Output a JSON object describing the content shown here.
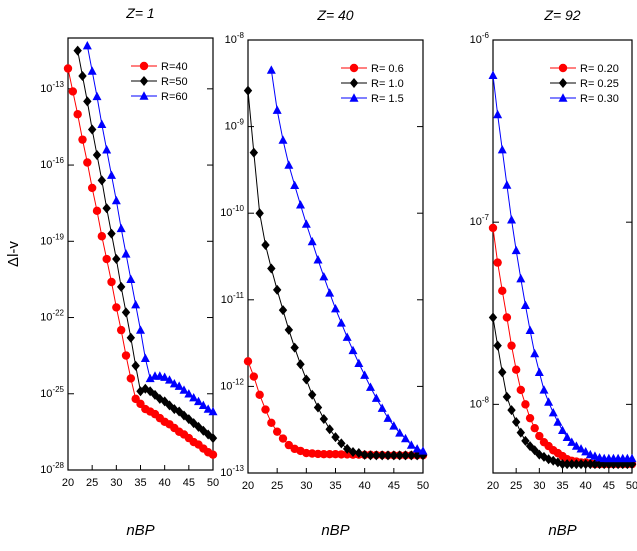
{
  "chart_data": [
    {
      "type": "line",
      "title": "Z= 1",
      "ylabel": "Δl-v",
      "xlabel": "nBP",
      "log_y": true,
      "x": [
        20,
        21,
        22,
        23,
        24,
        25,
        26,
        27,
        28,
        29,
        30,
        31,
        32,
        33,
        34,
        35,
        36,
        37,
        38,
        39,
        40,
        41,
        42,
        43,
        44,
        45,
        46,
        47,
        48,
        49,
        50
      ],
      "xlim": [
        20,
        50
      ],
      "xticks": [
        20,
        25,
        30,
        35,
        40,
        45,
        50
      ],
      "ylim": [
        1e-28,
        1e-11
      ],
      "yticks": [
        {
          "value": 1e-28,
          "label": "10-28"
        },
        {
          "value": 1e-25,
          "label": "10-25"
        },
        {
          "value": 1e-22,
          "label": "10-22"
        },
        {
          "value": 1e-19,
          "label": "10-19"
        },
        {
          "value": 1e-16,
          "label": "10-16"
        },
        {
          "value": 1e-13,
          "label": "10-13"
        }
      ],
      "series": [
        {
          "name": "R=40",
          "color": "#ff0000",
          "marker": "circle",
          "values": [
            6.3e-13,
            7.9e-14,
            1e-14,
            1e-15,
            1.26e-16,
            1.26e-17,
            1.58e-18,
            1.58e-19,
            2e-20,
            2.5e-21,
            2.5e-22,
            3.2e-23,
            3.2e-24,
            4e-25,
            6.3e-26,
            4e-26,
            2.5e-26,
            2e-26,
            1.58e-26,
            1.1e-26,
            7.9e-27,
            6.3e-27,
            4.5e-27,
            3.2e-27,
            2.5e-27,
            1.8e-27,
            1.26e-27,
            1e-27,
            7e-28,
            5e-28,
            4e-28
          ]
        },
        {
          "name": "R=50",
          "color": "#000000",
          "marker": "diamond",
          "values": [
            null,
            null,
            3.2e-12,
            3.2e-13,
            3.2e-14,
            2.5e-15,
            2.5e-16,
            2.5e-17,
            2e-18,
            2e-19,
            2e-20,
            1.6e-21,
            1.6e-22,
            1.6e-23,
            1.26e-24,
            1.26e-25,
            1.58e-25,
            1.26e-25,
            9e-26,
            6.3e-26,
            5e-26,
            3.5e-26,
            2.5e-26,
            2e-26,
            1.4e-26,
            1e-26,
            7e-27,
            5e-27,
            3.5e-27,
            2.5e-27,
            1.8e-27
          ]
        },
        {
          "name": "R=60",
          "color": "#0000ff",
          "marker": "triangle",
          "values": [
            null,
            null,
            null,
            null,
            5e-12,
            5e-13,
            5e-14,
            4e-15,
            4e-16,
            4e-17,
            4e-18,
            3.2e-19,
            3.2e-20,
            3.2e-21,
            3.2e-22,
            3.2e-23,
            2.5e-24,
            4e-25,
            5e-25,
            5e-25,
            4.5e-25,
            3.5e-25,
            2.5e-25,
            2e-25,
            1.4e-25,
            1e-25,
            7e-26,
            5e-26,
            3.5e-26,
            2.5e-26,
            2e-26
          ]
        }
      ]
    },
    {
      "type": "line",
      "title": "Z= 40",
      "xlabel": "nBP",
      "log_y": true,
      "x": [
        20,
        21,
        22,
        23,
        24,
        25,
        26,
        27,
        28,
        29,
        30,
        31,
        32,
        33,
        34,
        35,
        36,
        37,
        38,
        39,
        40,
        41,
        42,
        43,
        44,
        45,
        46,
        47,
        48,
        49,
        50
      ],
      "xlim": [
        20,
        50
      ],
      "xticks": [
        20,
        25,
        30,
        35,
        40,
        45,
        50
      ],
      "ylim": [
        1e-13,
        1e-08
      ],
      "yticks": [
        {
          "value": 1e-13,
          "label": "10-13"
        },
        {
          "value": 1e-12,
          "label": "10-12"
        },
        {
          "value": 1e-11,
          "label": "10-11"
        },
        {
          "value": 1e-10,
          "label": "10-10"
        },
        {
          "value": 1e-09,
          "label": "10-9"
        },
        {
          "value": 1e-08,
          "label": "10-8"
        }
      ],
      "series": [
        {
          "name": "R= 0.6",
          "color": "#ff0000",
          "marker": "circle",
          "values": [
            1.95e-12,
            1.3e-12,
            8e-13,
            5.4e-13,
            3.8e-13,
            3e-13,
            2.5e-13,
            2.1e-13,
            1.9e-13,
            1.8e-13,
            1.7e-13,
            1.68e-13,
            1.66e-13,
            1.65e-13,
            1.65e-13,
            1.65e-13,
            1.64e-13,
            1.64e-13,
            1.63e-13,
            1.63e-13,
            1.62e-13,
            1.62e-13,
            1.61e-13,
            1.61e-13,
            1.6e-13,
            1.6e-13,
            1.6e-13,
            1.6e-13,
            1.6e-13,
            1.6e-13,
            1.6e-13
          ]
        },
        {
          "name": "R= 1.0",
          "color": "#000000",
          "marker": "diamond",
          "values": [
            2.6e-09,
            5e-10,
            1e-10,
            4.3e-11,
            2.3e-11,
            1.3e-11,
            7.6e-12,
            4.5e-12,
            2.8e-12,
            1.8e-12,
            1.2e-12,
            8e-13,
            5.7e-13,
            4.2e-13,
            3.2e-13,
            2.6e-13,
            2.2e-13,
            1.9e-13,
            1.75e-13,
            1.7e-13,
            1.62e-13,
            1.6e-13,
            1.6e-13,
            1.6e-13,
            1.6e-13,
            1.6e-13,
            1.6e-13,
            1.6e-13,
            1.6e-13,
            1.6e-13,
            1.6e-13
          ]
        },
        {
          "name": "R= 1.5",
          "color": "#0000ff",
          "marker": "triangle",
          "values": [
            null,
            null,
            null,
            null,
            4.5e-09,
            1.55e-09,
            7e-10,
            3.6e-10,
            2.1e-10,
            1.25e-10,
            7.5e-11,
            4.7e-11,
            2.9e-11,
            1.85e-11,
            1.2e-11,
            7.9e-12,
            5.4e-12,
            3.7e-12,
            2.6e-12,
            1.85e-12,
            1.35e-12,
            9.8e-13,
            7.3e-13,
            5.6e-13,
            4.3e-13,
            3.5e-13,
            2.9e-13,
            2.5e-13,
            2.1e-13,
            1.9e-13,
            1.8e-13
          ]
        }
      ]
    },
    {
      "type": "line",
      "title": "Z= 92",
      "xlabel": "nBP",
      "log_y": true,
      "x": [
        20,
        21,
        22,
        23,
        24,
        25,
        26,
        27,
        28,
        29,
        30,
        31,
        32,
        33,
        34,
        35,
        36,
        37,
        38,
        39,
        40,
        41,
        42,
        43,
        44,
        45,
        46,
        47,
        48,
        49,
        50
      ],
      "xlim": [
        20,
        50
      ],
      "xticks": [
        20,
        25,
        30,
        35,
        40,
        45,
        50
      ],
      "ylim": [
        4.2e-09,
        1e-06
      ],
      "yticks": [
        {
          "value": 1e-08,
          "label": "10-8"
        },
        {
          "value": 1e-07,
          "label": "10-7"
        },
        {
          "value": 1e-06,
          "label": "10-6"
        }
      ],
      "series": [
        {
          "name": "R= 0.20",
          "color": "#ff0000",
          "marker": "circle",
          "values": [
            9.3e-08,
            6e-08,
            4.2e-08,
            3e-08,
            2.1e-08,
            1.55e-08,
            1.2e-08,
            1e-08,
            8.4e-09,
            7.4e-09,
            6.7e-09,
            6.2e-09,
            5.9e-09,
            5.6e-09,
            5.4e-09,
            5.2e-09,
            5e-09,
            4.9e-09,
            4.85e-09,
            4.8e-09,
            4.8e-09,
            4.75e-09,
            4.7e-09,
            4.7e-09,
            4.7e-09,
            4.7e-09,
            4.7e-09,
            4.7e-09,
            4.7e-09,
            4.7e-09,
            4.7e-09
          ]
        },
        {
          "name": "R= 0.25",
          "color": "#000000",
          "marker": "diamond",
          "values": [
            3e-08,
            2.1e-08,
            1.5e-08,
            1.1e-08,
            9.3e-09,
            8e-09,
            7e-09,
            6.3e-09,
            5.9e-09,
            5.6e-09,
            5.3e-09,
            5.15e-09,
            5e-09,
            4.9e-09,
            4.8e-09,
            4.7e-09,
            4.7e-09,
            4.7e-09,
            4.7e-09,
            4.7e-09,
            4.7e-09,
            4.7e-09,
            4.7e-09,
            4.7e-09,
            4.7e-09,
            4.7e-09,
            4.7e-09,
            4.7e-09,
            4.7e-09,
            4.7e-09,
            4.7e-09
          ]
        },
        {
          "name": "R= 0.30",
          "color": "#0000ff",
          "marker": "triangle",
          "values": [
            6.4e-07,
            3.9e-07,
            2.5e-07,
            1.6e-07,
            1.03e-07,
            7e-08,
            4.9e-08,
            3.5e-08,
            2.55e-08,
            1.9e-08,
            1.5e-08,
            1.2e-08,
            1.03e-08,
            9e-09,
            8e-09,
            7.2e-09,
            6.6e-09,
            6.2e-09,
            5.9e-09,
            5.7e-09,
            5.5e-09,
            5.3e-09,
            5.2e-09,
            5.1e-09,
            5.05e-09,
            5.05e-09,
            5.05e-09,
            5.05e-09,
            5.05e-09,
            5.05e-09,
            5.05e-09
          ]
        }
      ]
    }
  ]
}
